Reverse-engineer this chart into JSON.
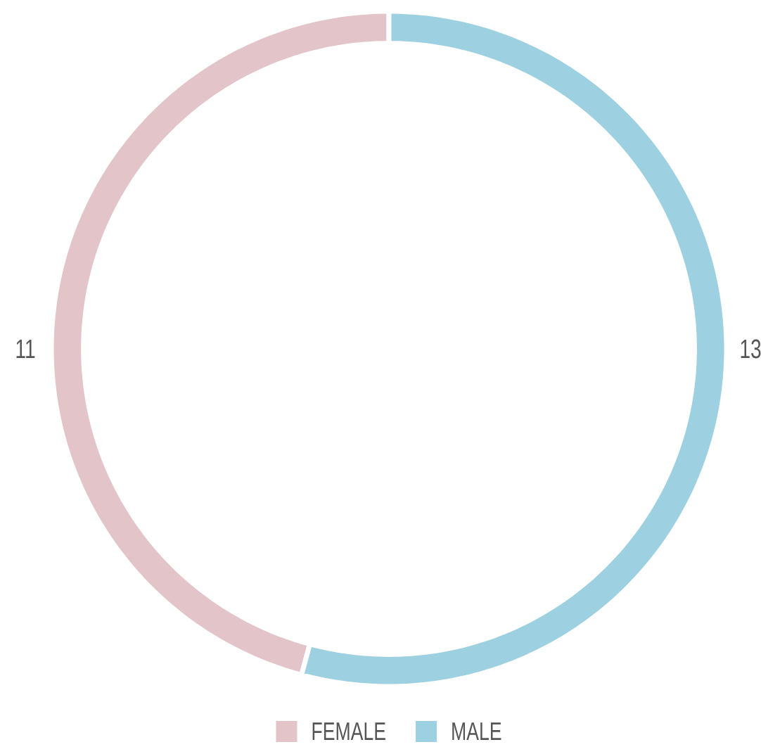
{
  "chart_data": {
    "type": "donut",
    "categories": [
      "FEMALE",
      "MALE"
    ],
    "values": [
      11,
      13
    ],
    "colors": [
      "#e3c4c8",
      "#9dd0e0"
    ],
    "data_labels": true,
    "legend": "bottom"
  }
}
